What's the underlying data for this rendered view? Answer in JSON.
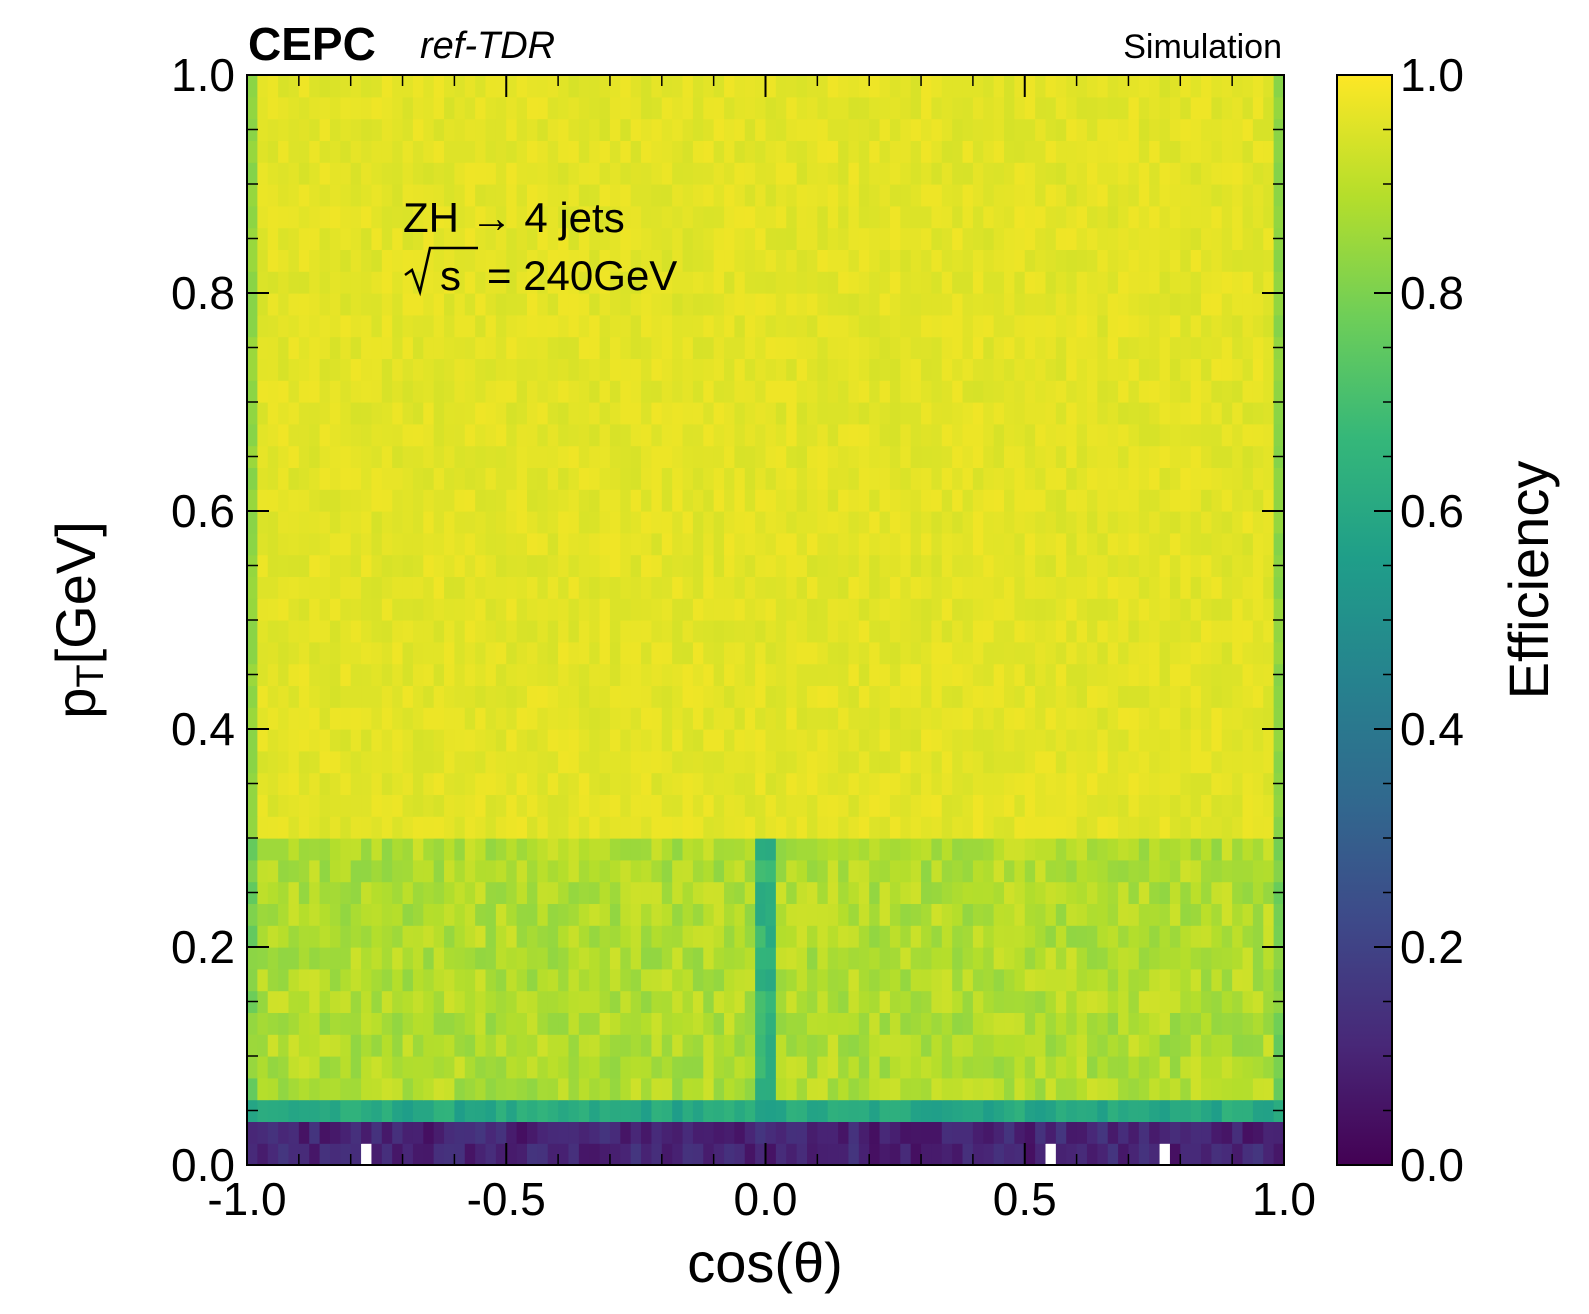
{
  "header": {
    "brand": "CEPC",
    "brand_sub": "ref-TDR",
    "status": "Simulation"
  },
  "annotation": {
    "process": "ZH →  4 jets",
    "energy_symbol": "s",
    "energy_value": "= 240GeV"
  },
  "colorbar": {
    "label": "Efficiency",
    "range": [
      0.0,
      1.0
    ],
    "ticks": [
      "0.0",
      "0.2",
      "0.4",
      "0.6",
      "0.8",
      "1.0"
    ],
    "colormap": "viridis",
    "stops": [
      "#440154",
      "#482878",
      "#3e4989",
      "#31688e",
      "#26828e",
      "#1f9e89",
      "#35b779",
      "#6ece58",
      "#b5de2b",
      "#fde725"
    ]
  },
  "chart_data": {
    "type": "heatmap",
    "title": "",
    "xlabel": "cos(θ)",
    "ylabel_main": "p",
    "ylabel_sub": "T",
    "ylabel_rest": "[GeV]",
    "xlim": [
      -1.0,
      1.0
    ],
    "ylim": [
      0.0,
      1.0
    ],
    "x_ticks": [
      "-1.0",
      "-0.5",
      "0.0",
      "0.5",
      "1.0"
    ],
    "y_ticks": [
      "0.0",
      "0.2",
      "0.4",
      "0.6",
      "0.8",
      "1.0"
    ],
    "grid": false,
    "x_bins": 100,
    "y_bins": 50,
    "efficiency_by_pt_band": [
      {
        "pt_range": [
          0.0,
          0.04
        ],
        "efficiency": 0.1
      },
      {
        "pt_range": [
          0.04,
          0.06
        ],
        "efficiency": 0.6
      },
      {
        "pt_range": [
          0.06,
          0.3
        ],
        "efficiency": 0.93
      },
      {
        "pt_range": [
          0.3,
          1.0
        ],
        "efficiency": 0.98
      }
    ],
    "edge_columns_efficiency": 0.85,
    "central_column": {
      "x": 0.0,
      "pt_range": [
        0.06,
        0.3
      ],
      "efficiency": 0.7
    },
    "empty_bins": [
      {
        "x": -0.77,
        "pt": 0.01
      },
      {
        "x": 0.55,
        "pt": 0.01
      },
      {
        "x": 0.56,
        "pt": 0.01
      },
      {
        "x": 0.77,
        "pt": 0.01
      }
    ]
  }
}
